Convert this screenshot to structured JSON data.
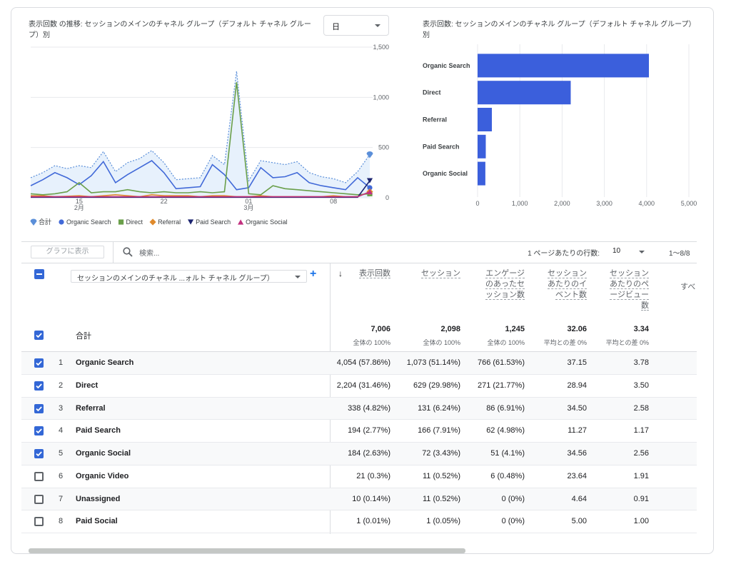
{
  "controls": {
    "granularity": "日",
    "show_in_chart": "グラフに表示",
    "search_placeholder": "検索...",
    "rows_per_page_label": "1 ページあたりの行数:",
    "rows_per_page": 10,
    "pagination": "1～8/8"
  },
  "chart_data": [
    {
      "type": "line",
      "title": "表示回数 の推移: セッションのメインのチャネル グループ（デフォルト チャネル グループ）別",
      "categories": [
        null,
        null,
        null,
        null,
        "15",
        null,
        null,
        null,
        null,
        null,
        null,
        "22",
        null,
        null,
        null,
        null,
        null,
        null,
        "01",
        null,
        null,
        null,
        null,
        null,
        null,
        "08",
        null,
        null,
        null
      ],
      "month_labels": [
        null,
        null,
        null,
        null,
        "2月",
        null,
        null,
        null,
        null,
        null,
        null,
        null,
        null,
        null,
        null,
        null,
        null,
        null,
        "3月",
        null,
        null,
        null,
        null,
        null,
        null,
        null,
        null,
        null,
        null
      ],
      "series": [
        {
          "name": "合計",
          "color": "#5b8fd9",
          "marker": "pin",
          "area": true,
          "dashed": true,
          "values": [
            200,
            250,
            320,
            290,
            320,
            300,
            460,
            260,
            350,
            390,
            470,
            350,
            180,
            190,
            200,
            420,
            330,
            1260,
            170,
            370,
            350,
            330,
            360,
            250,
            210,
            190,
            150,
            260,
            430
          ]
        },
        {
          "name": "Organic Search",
          "color": "#4169d8",
          "marker": "circle",
          "values": [
            120,
            180,
            250,
            200,
            130,
            220,
            360,
            150,
            230,
            300,
            370,
            250,
            90,
            100,
            110,
            330,
            230,
            80,
            100,
            300,
            200,
            210,
            250,
            150,
            120,
            100,
            80,
            200,
            100
          ]
        },
        {
          "name": "Direct",
          "color": "#6a9f4a",
          "marker": "square",
          "values": [
            40,
            30,
            40,
            60,
            150,
            50,
            60,
            60,
            80,
            60,
            50,
            60,
            50,
            50,
            60,
            50,
            60,
            1150,
            40,
            30,
            120,
            90,
            80,
            70,
            60,
            50,
            40,
            30,
            40
          ]
        },
        {
          "name": "Referral",
          "color": "#e08a2c",
          "marker": "diamond",
          "values": [
            20,
            20,
            10,
            15,
            20,
            10,
            20,
            30,
            20,
            10,
            30,
            20,
            20,
            20,
            10,
            20,
            20,
            10,
            10,
            20,
            10,
            10,
            10,
            10,
            10,
            20,
            10,
            10,
            60
          ]
        },
        {
          "name": "Paid Search",
          "color": "#1c2470",
          "marker": "triangle-down",
          "values": [
            5,
            5,
            5,
            5,
            5,
            5,
            5,
            5,
            5,
            5,
            5,
            5,
            5,
            5,
            5,
            5,
            5,
            5,
            5,
            5,
            5,
            5,
            5,
            5,
            5,
            5,
            5,
            5,
            170
          ]
        },
        {
          "name": "Organic Social",
          "color": "#c2307f",
          "marker": "triangle-up",
          "values": [
            10,
            10,
            10,
            10,
            10,
            10,
            10,
            10,
            10,
            10,
            10,
            10,
            10,
            10,
            10,
            10,
            10,
            10,
            10,
            10,
            10,
            10,
            10,
            10,
            10,
            10,
            10,
            10,
            60
          ]
        }
      ],
      "ylim": [
        0,
        1500
      ],
      "yticks": [
        0,
        500,
        {
          "value": 1000,
          "label": "1,000"
        },
        {
          "value": 1500,
          "label": "1,500"
        }
      ],
      "grid": true,
      "legend": "bottom"
    },
    {
      "type": "bar",
      "orientation": "horizontal",
      "title": "表示回数: セッションのメインのチャネル グループ（デフォルト チャネル グループ）別",
      "categories": [
        "Organic Search",
        "Direct",
        "Referral",
        "Paid Search",
        "Organic Social"
      ],
      "values": [
        4054,
        2204,
        338,
        194,
        184
      ],
      "color": "#3b5fdc",
      "xlim": [
        0,
        5000
      ],
      "xticks": [
        0,
        {
          "value": 1000,
          "label": "1,000"
        },
        {
          "value": 2000,
          "label": "2,000"
        },
        {
          "value": 3000,
          "label": "3,000"
        },
        {
          "value": 4000,
          "label": "4,000"
        },
        {
          "value": 5000,
          "label": "5,000"
        }
      ],
      "grid": true
    }
  ],
  "table": {
    "dimension": "セッションのメインのチャネル ...ォルト チャネル グループ）",
    "columns": [
      "表示回数",
      "セッション",
      "エンゲージのあったセッション数",
      "セッションあたりのイベント数",
      "セッションあたりのページビュー数",
      "すべ"
    ],
    "sorted_column": 0,
    "totals": {
      "label": "合計",
      "checked": true,
      "cells": [
        {
          "value": "7,006",
          "note": "全体の 100%"
        },
        {
          "value": "2,098",
          "note": "全体の 100%"
        },
        {
          "value": "1,245",
          "note": "全体の 100%"
        },
        {
          "value": "32.06",
          "note": "平均との差 0%"
        },
        {
          "value": "3.34",
          "note": "平均との差 0%"
        }
      ]
    },
    "rows": [
      {
        "index": 1,
        "name": "Organic Search",
        "checked": true,
        "cells": [
          "4,054 (57.86%)",
          "1,073 (51.14%)",
          "766 (61.53%)",
          "37.15",
          "3.78"
        ]
      },
      {
        "index": 2,
        "name": "Direct",
        "checked": true,
        "cells": [
          "2,204 (31.46%)",
          "629 (29.98%)",
          "271 (21.77%)",
          "28.94",
          "3.50"
        ]
      },
      {
        "index": 3,
        "name": "Referral",
        "checked": true,
        "cells": [
          "338 (4.82%)",
          "131 (6.24%)",
          "86 (6.91%)",
          "34.50",
          "2.58"
        ]
      },
      {
        "index": 4,
        "name": "Paid Search",
        "checked": true,
        "cells": [
          "194 (2.77%)",
          "166 (7.91%)",
          "62 (4.98%)",
          "11.27",
          "1.17"
        ]
      },
      {
        "index": 5,
        "name": "Organic Social",
        "checked": true,
        "cells": [
          "184 (2.63%)",
          "72 (3.43%)",
          "51 (4.1%)",
          "34.56",
          "2.56"
        ]
      },
      {
        "index": 6,
        "name": "Organic Video",
        "checked": false,
        "cells": [
          "21 (0.3%)",
          "11 (0.52%)",
          "6 (0.48%)",
          "23.64",
          "1.91"
        ]
      },
      {
        "index": 7,
        "name": "Unassigned",
        "checked": false,
        "cells": [
          "10 (0.14%)",
          "11 (0.52%)",
          "0 (0%)",
          "4.64",
          "0.91"
        ]
      },
      {
        "index": 8,
        "name": "Paid Social",
        "checked": false,
        "cells": [
          "1 (0.01%)",
          "1 (0.05%)",
          "0 (0%)",
          "5.00",
          "1.00"
        ]
      }
    ]
  }
}
